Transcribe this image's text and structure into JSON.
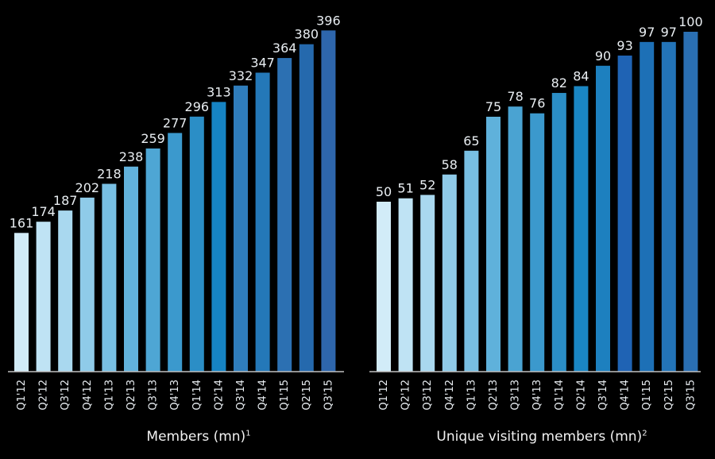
{
  "chart_data": [
    {
      "type": "bar",
      "title": "Members (mn)",
      "footnote_marker": "1",
      "categories": [
        "Q1'12",
        "Q2'12",
        "Q3'12",
        "Q4'12",
        "Q1'13",
        "Q2'13",
        "Q3'13",
        "Q4'13",
        "Q1'14",
        "Q2'14",
        "Q3'14",
        "Q4'14",
        "Q1'15",
        "Q2'15",
        "Q3'15"
      ],
      "values": [
        161,
        174,
        187,
        202,
        218,
        238,
        259,
        277,
        296,
        313,
        332,
        347,
        364,
        380,
        396
      ],
      "colors": [
        "#d2ecf8",
        "#bfe3f4",
        "#a9d8ef",
        "#8fcbe9",
        "#78bfe3",
        "#62b2dc",
        "#4ea6d4",
        "#3b99cd",
        "#2b8ec6",
        "#1684c4",
        "#2f7dbc",
        "#2478b8",
        "#2c70b2",
        "#2569ad",
        "#2e66ac"
      ],
      "ylim": [
        0,
        400
      ],
      "grid": false
    },
    {
      "type": "bar",
      "title": "Unique visiting members (mn)",
      "footnote_marker": "2",
      "categories": [
        "Q1'12",
        "Q2'12",
        "Q3'12",
        "Q4'12",
        "Q1'13",
        "Q2'13",
        "Q3'13",
        "Q4'13",
        "Q1'14",
        "Q2'14",
        "Q3'14",
        "Q4'14",
        "Q1'15",
        "Q2'15",
        "Q3'15"
      ],
      "values": [
        50,
        51,
        52,
        58,
        65,
        75,
        78,
        76,
        82,
        84,
        90,
        93,
        97,
        97,
        100
      ],
      "colors": [
        "#d2ecf8",
        "#bfe3f4",
        "#a9d8ef",
        "#8fcbe9",
        "#78bfe3",
        "#5fb1db",
        "#4aa3d2",
        "#3b99cd",
        "#2b8ec6",
        "#1a86c3",
        "#1d80bf",
        "#1f63b4",
        "#1d70b6",
        "#2374b8",
        "#2a6fb3"
      ],
      "ylim": [
        0,
        100
      ],
      "grid": false
    }
  ]
}
